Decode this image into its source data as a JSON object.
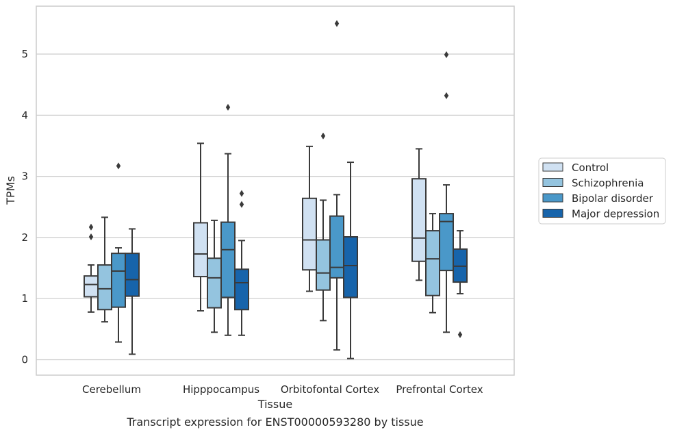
{
  "caption": "Transcript expression for ENST00000593280 by tissue",
  "chart_data": {
    "type": "box",
    "title": "",
    "xlabel": "Tissue",
    "ylabel": "TPMs",
    "ylim": [
      -0.25,
      5.78
    ],
    "yticks": [
      0,
      1,
      2,
      3,
      4,
      5
    ],
    "grid": "horizontal",
    "legend_position": "right",
    "categories": [
      "Cerebellum",
      "Hipppocampus",
      "Orbitofontal Cortex",
      "Prefrontal Cortex"
    ],
    "series": [
      {
        "name": "Control",
        "color": "#d0e1f2",
        "boxes": [
          {
            "whislo": 0.78,
            "q1": 1.03,
            "med": 1.23,
            "q3": 1.37,
            "whishi": 1.55,
            "fliers": [
              2.01,
              2.17
            ]
          },
          {
            "whislo": 0.8,
            "q1": 1.36,
            "med": 1.73,
            "q3": 2.24,
            "whishi": 3.54,
            "fliers": []
          },
          {
            "whislo": 1.12,
            "q1": 1.47,
            "med": 1.96,
            "q3": 2.64,
            "whishi": 3.49,
            "fliers": []
          },
          {
            "whislo": 1.3,
            "q1": 1.61,
            "med": 1.99,
            "q3": 2.96,
            "whishi": 3.45,
            "fliers": []
          }
        ]
      },
      {
        "name": "Schizophrenia",
        "color": "#94c4df",
        "boxes": [
          {
            "whislo": 0.62,
            "q1": 0.82,
            "med": 1.16,
            "q3": 1.55,
            "whishi": 2.33,
            "fliers": []
          },
          {
            "whislo": 0.45,
            "q1": 0.85,
            "med": 1.34,
            "q3": 1.66,
            "whishi": 2.28,
            "fliers": []
          },
          {
            "whislo": 0.64,
            "q1": 1.14,
            "med": 1.42,
            "q3": 1.96,
            "whishi": 2.61,
            "fliers": [
              3.66
            ]
          },
          {
            "whislo": 0.77,
            "q1": 1.05,
            "med": 1.65,
            "q3": 2.11,
            "whishi": 2.39,
            "fliers": []
          }
        ]
      },
      {
        "name": "Bipolar disorder",
        "color": "#4a98c9",
        "boxes": [
          {
            "whislo": 0.29,
            "q1": 0.86,
            "med": 1.45,
            "q3": 1.74,
            "whishi": 1.83,
            "fliers": [
              3.17
            ]
          },
          {
            "whislo": 0.4,
            "q1": 1.02,
            "med": 1.8,
            "q3": 2.25,
            "whishi": 3.37,
            "fliers": [
              4.13
            ]
          },
          {
            "whislo": 0.16,
            "q1": 1.34,
            "med": 1.51,
            "q3": 2.35,
            "whishi": 2.7,
            "fliers": [
              5.5
            ]
          },
          {
            "whislo": 0.45,
            "q1": 1.46,
            "med": 2.26,
            "q3": 2.39,
            "whishi": 2.86,
            "fliers": [
              4.32,
              4.99
            ]
          }
        ]
      },
      {
        "name": "Major depression",
        "color": "#1764ab",
        "boxes": [
          {
            "whislo": 0.09,
            "q1": 1.04,
            "med": 1.31,
            "q3": 1.74,
            "whishi": 2.14,
            "fliers": []
          },
          {
            "whislo": 0.4,
            "q1": 0.82,
            "med": 1.26,
            "q3": 1.48,
            "whishi": 1.95,
            "fliers": [
              2.54,
              2.72
            ]
          },
          {
            "whislo": 0.02,
            "q1": 1.02,
            "med": 1.54,
            "q3": 2.01,
            "whishi": 3.23,
            "fliers": []
          },
          {
            "whislo": 1.08,
            "q1": 1.27,
            "med": 1.53,
            "q3": 1.81,
            "whishi": 2.11,
            "fliers": [
              0.41
            ]
          }
        ]
      }
    ]
  }
}
